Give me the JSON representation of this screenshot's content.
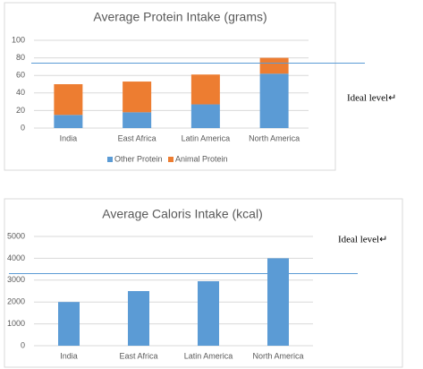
{
  "chart_data": [
    {
      "type": "bar",
      "stacked": true,
      "title": "Average Protein Intake (grams)",
      "categories": [
        "India",
        "East Africa",
        "Latin America",
        "North America"
      ],
      "series": [
        {
          "name": "Other Protein",
          "color": "#5b9bd5",
          "values": [
            15,
            18,
            27,
            62
          ]
        },
        {
          "name": "Animal Protein",
          "color": "#ed7d31",
          "values": [
            35,
            35,
            34,
            18
          ]
        }
      ],
      "ylim": [
        0,
        100
      ],
      "yticks": [
        0,
        20,
        40,
        60,
        80,
        100
      ],
      "grid": true,
      "reference_line": 74,
      "annotation": "Ideal level↵"
    },
    {
      "type": "bar",
      "title": "Average Caloris Intake (kcal)",
      "categories": [
        "India",
        "East Africa",
        "Latin America",
        "North America"
      ],
      "values": [
        2000,
        2500,
        2950,
        4000
      ],
      "color": "#5b9bd5",
      "ylim": [
        0,
        5000
      ],
      "yticks": [
        0,
        1000,
        2000,
        3000,
        4000,
        5000
      ],
      "grid": true,
      "reference_line": 3300,
      "annotation": "Ideal level↵"
    }
  ]
}
